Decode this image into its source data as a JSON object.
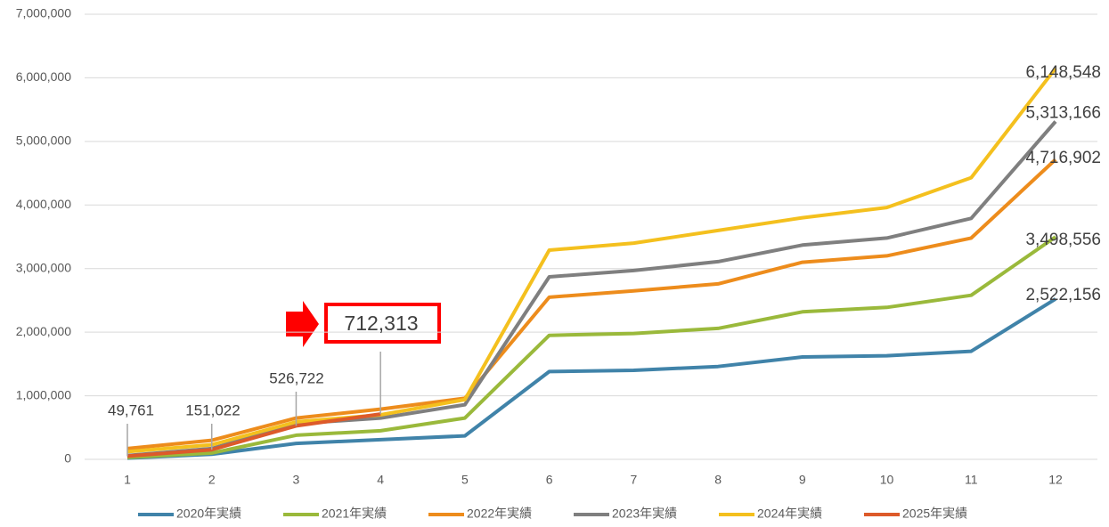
{
  "chart_data": {
    "type": "line",
    "categories": [
      "1",
      "2",
      "3",
      "4",
      "5",
      "6",
      "7",
      "8",
      "9",
      "10",
      "11",
      "12"
    ],
    "ylim": [
      0,
      7000000
    ],
    "yticks": [
      0,
      {
        "value": 1000000,
        "label": "1,000,000"
      },
      {
        "value": 2000000,
        "label": "2,000,000"
      },
      {
        "value": 3000000,
        "label": "3,000,000"
      },
      {
        "value": 4000000,
        "label": "4,000,000"
      },
      {
        "value": 5000000,
        "label": "5,000,000"
      },
      {
        "value": 6000000,
        "label": "6,000,000"
      },
      {
        "value": 7000000,
        "label": "7,000,000"
      }
    ],
    "grid": true,
    "legend": "bottom",
    "series": [
      {
        "name": "2020年実績",
        "color": "#4083a9",
        "values": [
          20000,
          80000,
          250000,
          310000,
          370000,
          1380000,
          1400000,
          1460000,
          1610000,
          1630000,
          1700000,
          2522156
        ],
        "value_labels": [
          null,
          null,
          null,
          null,
          null,
          null,
          null,
          null,
          null,
          null,
          null,
          "2,522,156"
        ]
      },
      {
        "name": "2021年実績",
        "color": "#9ab93b",
        "values": [
          30000,
          100000,
          380000,
          450000,
          650000,
          1950000,
          1980000,
          2060000,
          2320000,
          2390000,
          2580000,
          3498556
        ],
        "value_labels": [
          null,
          null,
          null,
          null,
          null,
          null,
          null,
          null,
          null,
          null,
          null,
          "3,498,556"
        ]
      },
      {
        "name": "2022年実績",
        "color": "#ed8c1c",
        "values": [
          170000,
          300000,
          650000,
          790000,
          960000,
          2550000,
          2650000,
          2760000,
          3100000,
          3200000,
          3480000,
          4716902
        ],
        "value_labels": [
          null,
          null,
          null,
          null,
          null,
          null,
          null,
          null,
          null,
          null,
          null,
          "4,716,902"
        ]
      },
      {
        "name": "2023年実績",
        "color": "#7f7f7f",
        "values": [
          60000,
          170000,
          560000,
          650000,
          860000,
          2870000,
          2970000,
          3110000,
          3370000,
          3480000,
          3790000,
          5313166
        ],
        "value_labels": [
          null,
          null,
          null,
          null,
          null,
          null,
          null,
          null,
          null,
          null,
          null,
          "5,313,166"
        ]
      },
      {
        "name": "2024年実績",
        "color": "#f4c01e",
        "values": [
          120000,
          230000,
          590000,
          700000,
          940000,
          3290000,
          3400000,
          3600000,
          3800000,
          3960000,
          4430000,
          6148548
        ],
        "value_labels": [
          null,
          null,
          null,
          null,
          null,
          null,
          null,
          null,
          null,
          null,
          null,
          "6,148,548"
        ]
      },
      {
        "name": "2025年実績",
        "color": "#dd5a2a",
        "values": [
          49761,
          151022,
          526722,
          712313,
          null,
          null,
          null,
          null,
          null,
          null,
          null,
          null
        ],
        "value_labels": [
          "49,761",
          "151,022",
          "526,722",
          "712,313",
          null,
          null,
          null,
          null,
          null,
          null,
          null,
          null
        ]
      }
    ]
  }
}
